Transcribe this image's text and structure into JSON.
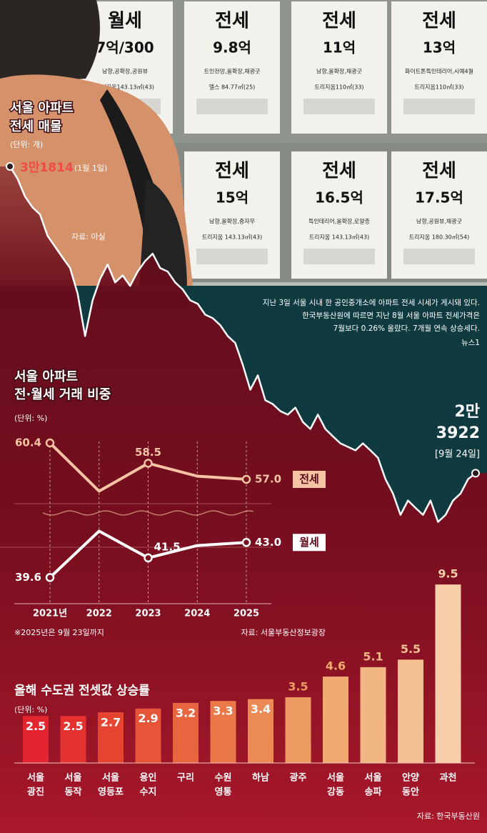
{
  "photo": {
    "signs": [
      {
        "type": "월세",
        "price": "7억/300",
        "detail": "남향,공확장,공원뷰",
        "size": "트리지움143.13㎡(43)"
      },
      {
        "type": "전세",
        "price": "9.8억",
        "detail": "트인전망,올확장,채광굿",
        "size": "엘스 84.77㎡(25)"
      },
      {
        "type": "전세",
        "price": "11억",
        "detail": "남향,올확장,채광굿",
        "size": "트리지움110㎡(33)"
      },
      {
        "type": "전세",
        "price": "13억",
        "detail": "화이트톤특인테리어,시예4월",
        "size": "트리지움110㎡(33)"
      },
      {
        "type": "전세",
        "price": "15억",
        "detail": "남향,올확장,중자무",
        "size": "트리지움 143.13㎡(43)"
      },
      {
        "type": "전세",
        "price": "16.5억",
        "detail": "특인테리어,올확장,로얄층",
        "size": "트리지움 143.13㎡(43)"
      },
      {
        "type": "전세",
        "price": "17.5억",
        "detail": "남향,공원뷰,채광굿",
        "size": "트리지움 180.30㎡(54)"
      }
    ],
    "caption": [
      "지난 3일 서울 시내 한 공인중개소에 아파트 전세 시세가 게시돼 있다.",
      "한국부동산원에 따르면 지난 8월 서울 아파트 전세가격은",
      "7월보다 0.26% 올랐다. 7개월 연속 상승세다."
    ],
    "credit": "뉴스1"
  },
  "chart_data": [
    {
      "type": "line",
      "title": [
        "서울 아파트",
        "전세 매물"
      ],
      "unit": "(단위: 개)",
      "source": "자료: 아실",
      "values": [
        31814,
        31500,
        31040,
        30760,
        30580,
        30030,
        29750,
        29470,
        29200,
        28550,
        27450,
        28370,
        28920,
        29290,
        28830,
        29010,
        28740,
        29110,
        29380,
        29570,
        29200,
        29110,
        28830,
        28650,
        28370,
        28280,
        28000,
        27910,
        27730,
        27450,
        27270,
        26710,
        26070,
        26440,
        25800,
        25700,
        25520,
        25430,
        25610,
        25240,
        25060,
        25430,
        25060,
        24870,
        24690,
        24600,
        24510,
        24690,
        24510,
        24320,
        23770,
        23400,
        22850,
        23220,
        23030,
        22850,
        23220,
        22670,
        22850,
        23220,
        23400,
        23770,
        23922
      ],
      "ylim": [
        22000,
        34000
      ],
      "color": "#ffffff",
      "start_label": "3만1814",
      "start_date": "(1월 1일)",
      "end_label": [
        "2만",
        "3922"
      ],
      "end_date": "[9월 24일]"
    },
    {
      "type": "line",
      "title": [
        "서울 아파트",
        "전·월세 거래 비중"
      ],
      "unit": "(단위: %)",
      "categories": [
        "2021년",
        "2022",
        "2023",
        "2024",
        "2025"
      ],
      "series": [
        {
          "name": "전세",
          "color": "#f6c3a4",
          "values": [
            60.4,
            55.9,
            58.5,
            57.3,
            57.0
          ],
          "value_labels": [
            "60.4",
            null,
            "58.5",
            null,
            "57.0"
          ]
        },
        {
          "name": "월세",
          "color": "#ffffff",
          "axis": "y2",
          "values": [
            39.6,
            44.1,
            41.5,
            42.7,
            43.0
          ],
          "value_labels": [
            "39.6",
            null,
            "41.5",
            null,
            "43.0"
          ]
        }
      ],
      "ylim": [
        54,
        61
      ],
      "y2lim": [
        39,
        46
      ],
      "note": "※2025년은 9월 23일까지",
      "source": "자료: 서울부동산정보광장"
    },
    {
      "type": "bar",
      "title": "올해 수도권 전셋값 상승률",
      "unit": "(단위: %)",
      "categories": [
        [
          "서울",
          "광진"
        ],
        [
          "서울",
          "동작"
        ],
        [
          "서울",
          "영등포"
        ],
        [
          "용인",
          "수지"
        ],
        [
          "구리"
        ],
        [
          "수원",
          "영통"
        ],
        [
          "하남"
        ],
        [
          "광주"
        ],
        [
          "서울",
          "강동"
        ],
        [
          "서울",
          "송파"
        ],
        [
          "안양",
          "동안"
        ],
        [
          "과천"
        ]
      ],
      "values": [
        2.5,
        2.5,
        2.7,
        2.9,
        3.2,
        3.3,
        3.4,
        3.5,
        4.6,
        5.1,
        5.5,
        9.5
      ],
      "colors": [
        "#e3252f",
        "#e4322f",
        "#e54431",
        "#e65537",
        "#e8663f",
        "#ea7849",
        "#ec8a55",
        "#ee9b63",
        "#f0aa72",
        "#f2b684",
        "#f4c195",
        "#f7cdaa"
      ],
      "ylim": [
        0,
        10
      ],
      "source": "자료: 한국부동산원"
    }
  ]
}
